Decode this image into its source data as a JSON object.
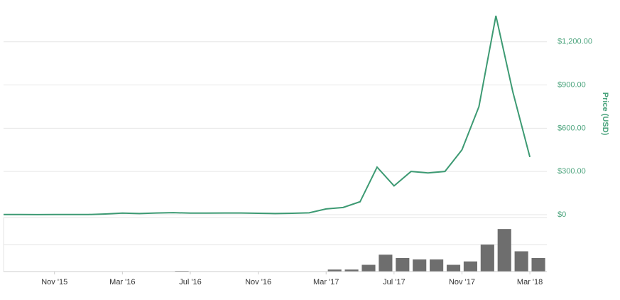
{
  "chart_data": [
    {
      "type": "line",
      "y_label": "Price (USD)",
      "x": [
        "2015-08",
        "2015-09",
        "2015-10",
        "2015-11",
        "2015-12",
        "2016-01",
        "2016-02",
        "2016-03",
        "2016-04",
        "2016-05",
        "2016-06",
        "2016-07",
        "2016-08",
        "2016-09",
        "2016-10",
        "2016-11",
        "2016-12",
        "2017-01",
        "2017-02",
        "2017-03",
        "2017-04",
        "2017-05",
        "2017-06",
        "2017-07",
        "2017-08",
        "2017-09",
        "2017-10",
        "2017-11",
        "2017-12",
        "2018-01",
        "2018-02",
        "2018-03"
      ],
      "series": [
        {
          "color": "#3d9a73",
          "values": [
            1,
            1,
            0.6,
            1,
            1,
            1,
            5,
            11,
            8,
            12,
            14,
            11,
            11,
            12,
            12,
            10,
            8,
            10,
            13,
            40,
            50,
            90,
            330,
            200,
            300,
            290,
            300,
            450,
            750,
            1380,
            850,
            400
          ]
        }
      ],
      "xlim": [
        "2015-08",
        "2018-04"
      ],
      "xticks": [
        {
          "value": "2015-11",
          "label": "Nov '15"
        },
        {
          "value": "2016-03",
          "label": "Mar '16"
        },
        {
          "value": "2016-07",
          "label": "Jul '16"
        },
        {
          "value": "2016-11",
          "label": "Nov '16"
        },
        {
          "value": "2017-03",
          "label": "Mar '17"
        },
        {
          "value": "2017-07",
          "label": "Jul '17"
        },
        {
          "value": "2017-11",
          "label": "Nov '17"
        },
        {
          "value": "2018-03",
          "label": "Mar '18"
        }
      ],
      "ylim": [
        0,
        1460
      ],
      "yticks": [
        {
          "value": 0,
          "label": "$0"
        },
        {
          "value": 300,
          "label": "$300.00"
        },
        {
          "value": 600,
          "label": "$600.00"
        },
        {
          "value": 900,
          "label": "$900.00"
        },
        {
          "value": 1200,
          "label": "$1,200.00"
        }
      ],
      "grid": true
    },
    {
      "type": "bar",
      "color": "#6e6e6e",
      "x": [
        "2015-08",
        "2015-09",
        "2015-10",
        "2015-11",
        "2015-12",
        "2016-01",
        "2016-02",
        "2016-03",
        "2016-04",
        "2016-05",
        "2016-06",
        "2016-07",
        "2016-08",
        "2016-09",
        "2016-10",
        "2016-11",
        "2016-12",
        "2017-01",
        "2017-02",
        "2017-03",
        "2017-04",
        "2017-05",
        "2017-06",
        "2017-07",
        "2017-08",
        "2017-09",
        "2017-10",
        "2017-11",
        "2017-12",
        "2018-01",
        "2018-02",
        "2018-03"
      ],
      "values": [
        0,
        0,
        0,
        0,
        0,
        0,
        0,
        0.05,
        0.05,
        0.05,
        0.1,
        0.05,
        0.05,
        0.05,
        0.05,
        0.05,
        0.05,
        0.05,
        0.05,
        0.3,
        0.3,
        1,
        2.5,
        2,
        1.8,
        1.8,
        1,
        1.5,
        4,
        6.3,
        3,
        2
      ],
      "ylim": [
        0,
        8
      ],
      "yticks": [
        4
      ],
      "grid": true
    }
  ]
}
